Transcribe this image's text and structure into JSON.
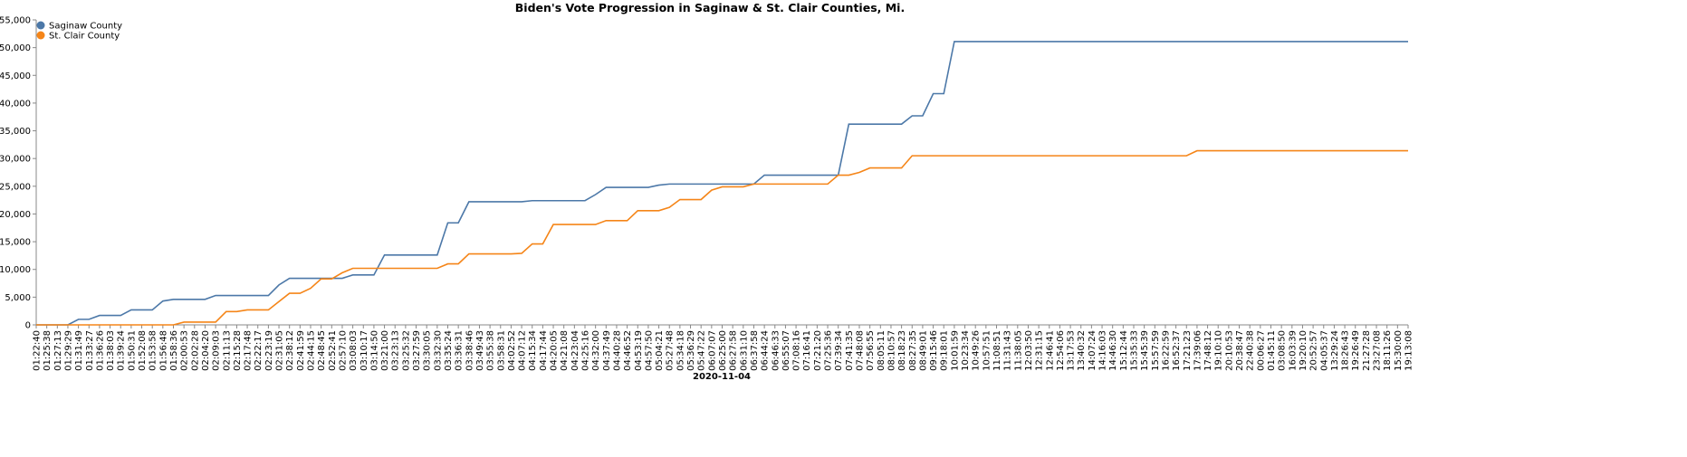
{
  "chart_data": {
    "type": "line",
    "title": "Biden's Vote Progression in Saginaw & St. Clair Counties, Mi.",
    "x_label": "2020-11-04",
    "categories": [
      "01:22:40",
      "01:25:38",
      "01:27:13",
      "01:29:29",
      "01:31:49",
      "01:33:27",
      "01:36:26",
      "01:38:03",
      "01:39:24",
      "01:50:31",
      "01:52:08",
      "01:53:58",
      "01:56:48",
      "01:58:36",
      "02:00:53",
      "02:02:28",
      "02:04:20",
      "02:09:03",
      "02:11:13",
      "02:15:28",
      "02:17:48",
      "02:22:17",
      "02:23:19",
      "02:31:05",
      "02:38:12",
      "02:41:59",
      "02:44:15",
      "02:48:45",
      "02:52:41",
      "02:57:10",
      "03:08:03",
      "03:10:17",
      "03:14:50",
      "03:21:00",
      "03:23:13",
      "03:25:32",
      "03:27:59",
      "03:30:05",
      "03:32:30",
      "03:35:24",
      "03:36:31",
      "03:38:46",
      "03:49:43",
      "03:55:38",
      "03:58:31",
      "04:02:52",
      "04:07:12",
      "04:15:34",
      "04:17:44",
      "04:20:05",
      "04:21:08",
      "04:23:04",
      "04:25:16",
      "04:32:00",
      "04:37:49",
      "04:40:28",
      "04:46:52",
      "04:53:19",
      "04:57:50",
      "05:04:21",
      "05:27:48",
      "05:34:18",
      "05:36:29",
      "05:47:22",
      "06:07:07",
      "06:25:00",
      "06:27:58",
      "06:31:10",
      "06:37:58",
      "06:44:24",
      "06:46:33",
      "06:55:07",
      "07:08:16",
      "07:16:41",
      "07:21:20",
      "07:25:36",
      "07:39:34",
      "07:41:35",
      "07:48:08",
      "07:56:55",
      "08:05:11",
      "08:10:57",
      "08:18:23",
      "08:27:35",
      "08:49:01",
      "09:15:46",
      "09:18:01",
      "10:01:59",
      "10:23:34",
      "10:49:26",
      "10:57:51",
      "11:08:51",
      "11:31:43",
      "11:38:05",
      "12:03:50",
      "12:31:15",
      "12:46:41",
      "12:54:06",
      "13:17:53",
      "13:40:32",
      "14:07:24",
      "14:16:03",
      "14:46:30",
      "15:12:44",
      "15:35:33",
      "15:45:39",
      "15:57:59",
      "16:22:59",
      "16:52:37",
      "17:21:23",
      "17:39:06",
      "17:48:12",
      "19:10:10",
      "20:10:53",
      "20:38:47",
      "22:40:38",
      "00:06:27",
      "01:45:11",
      "03:08:50",
      "16:03:39",
      "19:20:10",
      "20:52:57",
      "04:05:37",
      "13:29:24",
      "18:26:43",
      "19:26:49",
      "21:27:28",
      "23:27:08",
      "18:11:26",
      "15:30:00",
      "19:13:08"
    ],
    "series": [
      {
        "name": "Saginaw County",
        "color": "#4c78a8",
        "values": [
          0,
          0,
          0,
          0,
          1000,
          1000,
          1700,
          1700,
          1700,
          2700,
          2700,
          2700,
          4300,
          4600,
          4600,
          4600,
          4600,
          5300,
          5300,
          5300,
          5300,
          5300,
          5300,
          7200,
          8400,
          8400,
          8400,
          8400,
          8400,
          8400,
          9000,
          9000,
          9000,
          12600,
          12600,
          12600,
          12600,
          12600,
          12600,
          18400,
          18400,
          22200,
          22200,
          22200,
          22200,
          22200,
          22200,
          22400,
          22400,
          22400,
          22400,
          22400,
          22400,
          23500,
          24800,
          24800,
          24800,
          24800,
          24800,
          25200,
          25400,
          25400,
          25400,
          25400,
          25400,
          25400,
          25400,
          25400,
          25400,
          27000,
          27000,
          27000,
          27000,
          27000,
          27000,
          27000,
          27000,
          36200,
          36200,
          36200,
          36200,
          36200,
          36200,
          37700,
          37700,
          41700,
          41700,
          51100,
          51100,
          51100,
          51100,
          51100,
          51100,
          51100,
          51100,
          51100,
          51100,
          51100,
          51100,
          51100,
          51100,
          51100,
          51100,
          51100,
          51100,
          51100,
          51100,
          51100,
          51100,
          51100,
          51100,
          51100,
          51100,
          51100,
          51100,
          51100,
          51100,
          51100,
          51100,
          51100,
          51100,
          51100,
          51100,
          51100,
          51100,
          51100,
          51100,
          51100,
          51100,
          51100,
          51100
        ]
      },
      {
        "name": "St. Clair County",
        "color": "#f58518",
        "values": [
          0,
          0,
          0,
          0,
          0,
          0,
          0,
          0,
          0,
          0,
          0,
          0,
          0,
          0,
          500,
          500,
          500,
          500,
          2400,
          2400,
          2700,
          2700,
          2700,
          4200,
          5700,
          5700,
          6600,
          8300,
          8300,
          9400,
          10200,
          10200,
          10200,
          10200,
          10200,
          10200,
          10200,
          10200,
          10200,
          11000,
          11000,
          12800,
          12800,
          12800,
          12800,
          12800,
          12900,
          14600,
          14600,
          18100,
          18100,
          18100,
          18100,
          18100,
          18800,
          18800,
          18800,
          20600,
          20600,
          20600,
          21200,
          22600,
          22600,
          22600,
          24300,
          24900,
          24900,
          24900,
          25400,
          25400,
          25400,
          25400,
          25400,
          25400,
          25400,
          25400,
          27000,
          27000,
          27500,
          28300,
          28300,
          28300,
          28300,
          30500,
          30500,
          30500,
          30500,
          30500,
          30500,
          30500,
          30500,
          30500,
          30500,
          30500,
          30500,
          30500,
          30500,
          30500,
          30500,
          30500,
          30500,
          30500,
          30500,
          30500,
          30500,
          30500,
          30500,
          30500,
          30500,
          30500,
          31400,
          31400,
          31400,
          31400,
          31400,
          31400,
          31400,
          31400,
          31400,
          31400,
          31400,
          31400,
          31400,
          31400,
          31400,
          31400,
          31400,
          31400,
          31400,
          31400,
          31400
        ]
      }
    ],
    "ylim": [
      0,
      55000
    ],
    "yticks": [
      0,
      {
        "value": 5000,
        "label": "5,000"
      },
      {
        "value": 10000,
        "label": "10,000"
      },
      {
        "value": 15000,
        "label": "15,000"
      },
      {
        "value": 20000,
        "label": "20,000"
      },
      {
        "value": 25000,
        "label": "25,000"
      },
      {
        "value": 30000,
        "label": "30,000"
      },
      {
        "value": 35000,
        "label": "35,000"
      },
      {
        "value": 40000,
        "label": "40,000"
      },
      {
        "value": 45000,
        "label": "45,000"
      },
      {
        "value": 50000,
        "label": "50,000"
      },
      {
        "value": 55000,
        "label": "55,000"
      }
    ],
    "legend": "top-left"
  }
}
